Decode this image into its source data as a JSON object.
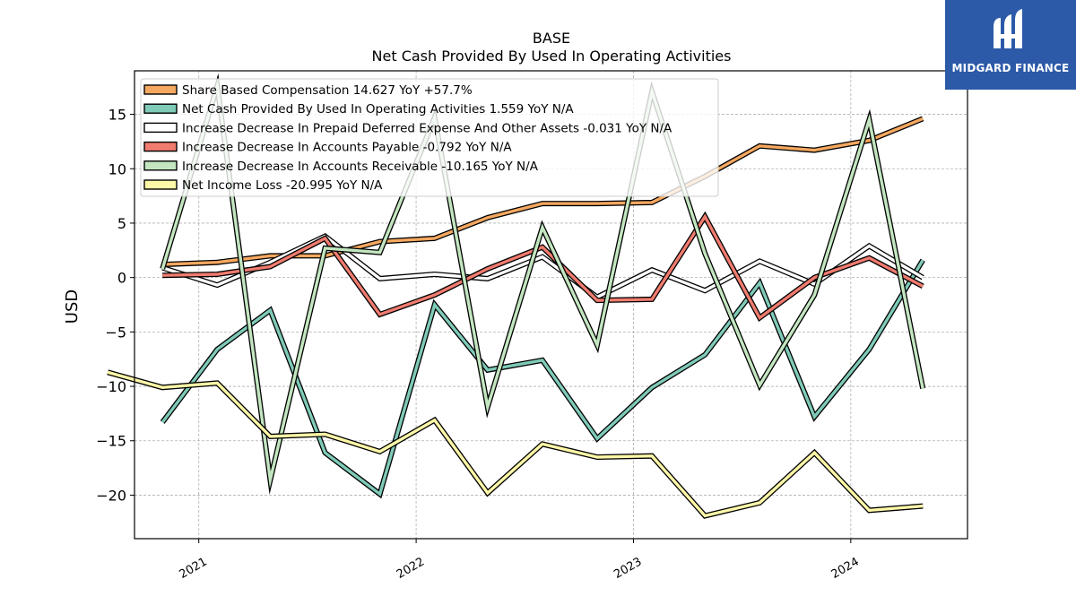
{
  "chart_data": {
    "type": "line",
    "title": "BASE",
    "subtitle": "Net Cash Provided By Used In Operating Activities",
    "xlabel": "",
    "ylabel": "USD",
    "ylim": [
      -24,
      19
    ],
    "yticks": [
      15,
      10,
      5,
      0,
      -5,
      -10,
      -15,
      -20
    ],
    "ytick_labels": [
      "15",
      "10",
      "5",
      "0",
      "−5",
      "−10",
      "−15",
      "−20"
    ],
    "xticks": [
      "2021-01-01",
      "2022-01-01",
      "2023-01-01",
      "2024-01-01"
    ],
    "xtick_labels": [
      "2021",
      "2022",
      "2023",
      "2024"
    ],
    "xlim": [
      "2020-09-15",
      "2024-07-15"
    ],
    "grid": true,
    "legend_position": "top-left",
    "series": [
      {
        "name": "Share Based Compensation",
        "legend": "Share Based Compensation  14.627 YoY +57.7%",
        "color": "#f5a860",
        "x": [
          "2020-11-01",
          "2021-02-01",
          "2021-05-01",
          "2021-08-01",
          "2021-11-01",
          "2022-02-01",
          "2022-05-01",
          "2022-08-01",
          "2022-11-01",
          "2023-02-01",
          "2023-05-01",
          "2023-08-01",
          "2023-11-01",
          "2024-02-01",
          "2024-05-01"
        ],
        "values": [
          1.2,
          1.4,
          2.0,
          2.0,
          3.3,
          3.6,
          5.5,
          6.8,
          6.8,
          6.9,
          9.3,
          12.1,
          11.7,
          12.6,
          14.6
        ]
      },
      {
        "name": "Net Cash Provided By Used In Operating Activities",
        "legend": "Net Cash Provided By Used In Operating Activities  1.559 YoY N/A",
        "color": "#7fcab8",
        "x": [
          "2020-11-01",
          "2021-02-01",
          "2021-05-01",
          "2021-08-01",
          "2021-11-01",
          "2022-02-01",
          "2022-05-01",
          "2022-08-01",
          "2022-11-01",
          "2023-02-01",
          "2023-05-01",
          "2023-08-01",
          "2023-11-01",
          "2024-02-01",
          "2024-05-01"
        ],
        "values": [
          -13.3,
          -6.6,
          -3.0,
          -16.1,
          -19.9,
          -2.5,
          -8.5,
          -7.6,
          -14.8,
          -10.1,
          -7.1,
          -0.5,
          -12.8,
          -6.6,
          1.6
        ]
      },
      {
        "name": "Increase Decrease In Prepaid Deferred Expense And Other Assets",
        "legend": "Increase Decrease In Prepaid Deferred Expense And Other Assets  -0.031 YoY N/A",
        "color": "#ffffff",
        "x": [
          "2020-11-01",
          "2021-02-01",
          "2021-05-01",
          "2021-08-01",
          "2021-11-01",
          "2022-02-01",
          "2022-05-01",
          "2022-08-01",
          "2022-11-01",
          "2023-02-01",
          "2023-05-01",
          "2023-08-01",
          "2023-11-01",
          "2024-02-01",
          "2024-05-01"
        ],
        "values": [
          0.9,
          -0.7,
          1.4,
          3.8,
          -0.1,
          0.3,
          -0.1,
          1.9,
          -1.8,
          0.7,
          -1.2,
          1.5,
          -0.6,
          2.9,
          -0.0
        ]
      },
      {
        "name": "Increase Decrease In Accounts Payable",
        "legend": "Increase Decrease In Accounts Payable  -0.792 YoY N/A",
        "color": "#f07b6f",
        "x": [
          "2020-11-01",
          "2021-02-01",
          "2021-05-01",
          "2021-08-01",
          "2021-11-01",
          "2022-02-01",
          "2022-05-01",
          "2022-08-01",
          "2022-11-01",
          "2023-02-01",
          "2023-05-01",
          "2023-08-01",
          "2023-11-01",
          "2024-02-01",
          "2024-05-01"
        ],
        "values": [
          0.2,
          0.3,
          1.0,
          3.6,
          -3.4,
          -1.6,
          0.8,
          2.8,
          -2.1,
          -2.0,
          5.6,
          -3.7,
          0.0,
          1.8,
          -0.8
        ]
      },
      {
        "name": "Increase Decrease In Accounts Receivable",
        "legend": "Increase Decrease In Accounts Receivable  -10.165 YoY N/A",
        "color": "#c3e6c0",
        "x": [
          "2020-11-01",
          "2021-02-01",
          "2021-05-01",
          "2021-08-01",
          "2021-11-01",
          "2022-02-01",
          "2022-05-01",
          "2022-08-01",
          "2022-11-01",
          "2023-02-01",
          "2023-05-01",
          "2023-08-01",
          "2023-11-01",
          "2024-02-01",
          "2024-05-01"
        ],
        "values": [
          0.8,
          17.6,
          -18.6,
          2.7,
          2.3,
          14.7,
          -11.9,
          4.6,
          -6.2,
          17.1,
          2.2,
          -9.9,
          -1.6,
          14.5,
          -10.2
        ]
      },
      {
        "name": "Net Income Loss",
        "legend": "Net Income Loss  -20.995 YoY N/A",
        "color": "#fdf7a8",
        "x": [
          "2020-08-01",
          "2020-11-01",
          "2021-02-01",
          "2021-05-01",
          "2021-08-01",
          "2021-11-01",
          "2022-02-01",
          "2022-05-01",
          "2022-08-01",
          "2022-11-01",
          "2023-02-01",
          "2023-05-01",
          "2023-08-01",
          "2023-11-01",
          "2024-02-01",
          "2024-05-01"
        ],
        "values": [
          -8.7,
          -10.1,
          -9.7,
          -14.6,
          -14.4,
          -16.0,
          -13.1,
          -19.8,
          -15.3,
          -16.5,
          -16.4,
          -21.9,
          -20.7,
          -16.1,
          -21.4,
          -21.0
        ]
      }
    ]
  },
  "logo": {
    "text": "MIDGARD FINANCE",
    "color": "#2c5aa8"
  }
}
